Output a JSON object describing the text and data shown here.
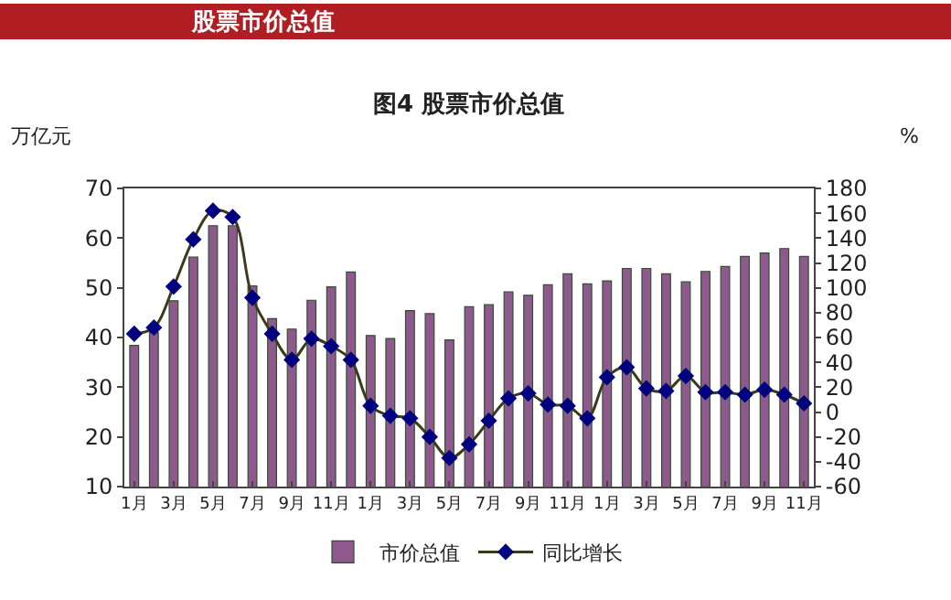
{
  "chart_data": {
    "type": "bar",
    "title": "股票市价总值",
    "subtitle": "图4 股票市价总值",
    "ylabel": "万亿元",
    "y2label": "%",
    "categories": [
      "1月",
      null,
      "3月",
      null,
      "5月",
      null,
      "7月",
      null,
      "9月",
      null,
      "11月",
      null,
      "1月",
      null,
      "3月",
      null,
      "5月",
      null,
      "7月",
      null,
      "9月",
      null,
      "11月",
      null,
      "1月",
      null,
      "3月",
      null,
      "5月",
      null,
      "7月",
      null,
      "9月",
      null,
      "11月"
    ],
    "series": [
      {
        "name": "市价总值",
        "color": "#8e5a8e",
        "values": [
          38.4,
          41,
          47.4,
          56.2,
          62.5,
          62.5,
          50.4,
          43.8,
          41.7,
          47.5,
          50.2,
          53.2,
          40.4,
          39.8,
          45.4,
          44.8,
          39.5,
          46.2,
          46.6,
          49.2,
          48.5,
          50.6,
          52.8,
          50.8,
          51.4,
          53.9,
          53.9,
          52.8,
          51.2,
          53.3,
          54.3,
          56.3,
          57.0,
          57.9,
          56.3
        ]
      },
      {
        "name": "同比增长",
        "type": "line",
        "axis": "y2",
        "color": "#000080",
        "values": [
          63,
          68,
          101,
          139,
          162,
          157,
          92,
          63,
          42,
          59,
          53,
          42,
          5,
          -3,
          -5,
          -20,
          -37,
          -26,
          -7,
          11,
          15,
          6,
          5,
          -5,
          28,
          36,
          19,
          17,
          29,
          16,
          16,
          14,
          18,
          14,
          7
        ]
      }
    ],
    "ylim": [
      10,
      70
    ],
    "yticks": [
      10,
      20,
      30,
      40,
      50,
      60,
      70
    ],
    "y2lim": [
      -60,
      180
    ],
    "y2ticks": [
      -60,
      -40,
      -20,
      0,
      20,
      40,
      60,
      80,
      100,
      120,
      140,
      160,
      180
    ],
    "marker": "diamond",
    "line_style": "solid",
    "legend": "bottom"
  }
}
